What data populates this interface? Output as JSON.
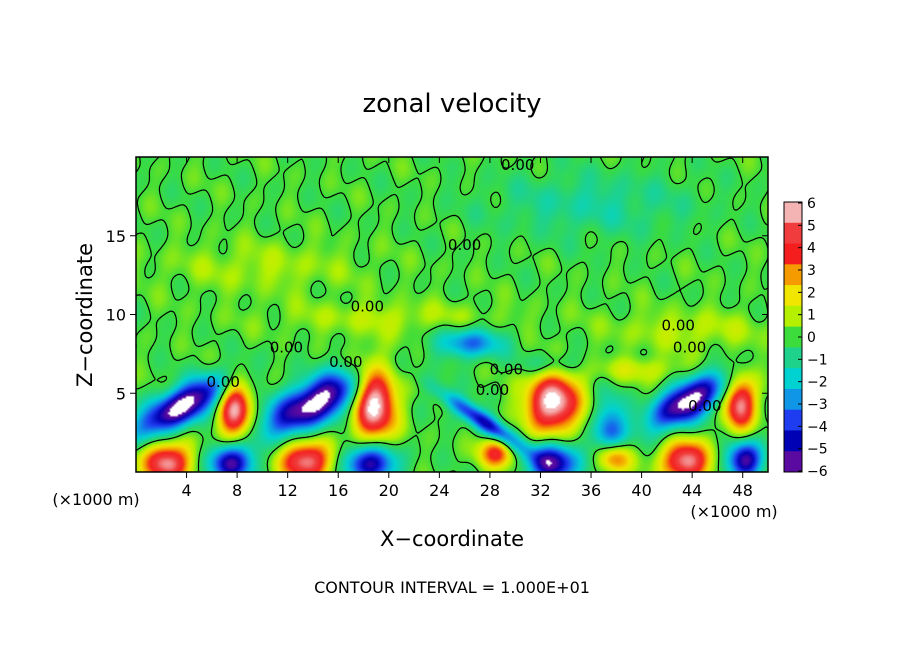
{
  "chart_data": {
    "type": "heatmap",
    "title": "zonal velocity",
    "xlabel": "X−coordinate",
    "ylabel": "Z−coordinate",
    "x_unit_left": "(×1000 m)",
    "x_unit_right": "(×1000 m)",
    "footer": "CONTOUR INTERVAL = 1.000E+01",
    "xlim": [
      0,
      50
    ],
    "ylim": [
      0,
      20
    ],
    "x_ticks": [
      4,
      8,
      12,
      16,
      20,
      24,
      28,
      32,
      36,
      40,
      44,
      48
    ],
    "x_tick_labels": [
      "4",
      "8",
      "12",
      "16",
      "20",
      "24",
      "28",
      "32",
      "36",
      "40",
      "44",
      "48"
    ],
    "y_ticks": [
      5,
      10,
      15
    ],
    "y_tick_labels": [
      "5",
      "10",
      "15"
    ],
    "colorbar": {
      "values": [
        6,
        5,
        4,
        3,
        2,
        1,
        0,
        -1,
        -2,
        -3,
        -4,
        -5,
        -6
      ],
      "labels": [
        "6",
        "5",
        "4",
        "3",
        "2",
        "1",
        "0",
        "−1",
        "−2",
        "−3",
        "−4",
        "−5",
        "−6"
      ],
      "colors": [
        "#f5b4b4",
        "#f03c3c",
        "#f51e1e",
        "#f59b00",
        "#f0e600",
        "#b4f000",
        "#3cdc3c",
        "#1ed28c",
        "#00d2d2",
        "#0f96e6",
        "#1e3cf0",
        "#0000b4",
        "#5a0aa0"
      ]
    },
    "contour_labels": [
      {
        "text": "0.00",
        "x": 30.2,
        "y": 19.5
      },
      {
        "text": "0.00",
        "x": 26.0,
        "y": 14.4
      },
      {
        "text": "0.00",
        "x": 18.3,
        "y": 10.5
      },
      {
        "text": "0.00",
        "x": 11.9,
        "y": 7.9
      },
      {
        "text": "0.00",
        "x": 16.6,
        "y": 7.0
      },
      {
        "text": "0.00",
        "x": 6.9,
        "y": 5.7
      },
      {
        "text": "0.00",
        "x": 42.9,
        "y": 9.3
      },
      {
        "text": "0.00",
        "x": 43.8,
        "y": 7.9
      },
      {
        "text": "0.00",
        "x": 29.3,
        "y": 6.5
      },
      {
        "text": "0.00",
        "x": 28.2,
        "y": 5.2
      },
      {
        "text": "0.00",
        "x": 45.0,
        "y": 4.2
      }
    ],
    "features": [
      {
        "x": 3.7,
        "z": 4.2,
        "rx": 2.6,
        "rz": 2.8,
        "amp": -7,
        "rot": -35
      },
      {
        "x": 7.8,
        "z": 3.9,
        "rx": 1.7,
        "rz": 2.6,
        "amp": 6,
        "rot": 0
      },
      {
        "x": 14.2,
        "z": 4.4,
        "rx": 3.2,
        "rz": 3.0,
        "amp": -7,
        "rot": -35
      },
      {
        "x": 18.8,
        "z": 4.5,
        "rx": 2.2,
        "rz": 3.2,
        "amp": 7,
        "rot": 0
      },
      {
        "x": 27.5,
        "z": 3.2,
        "rx": 1.3,
        "rz": 3.0,
        "amp": -5,
        "rot": 35
      },
      {
        "x": 33.0,
        "z": 4.4,
        "rx": 2.6,
        "rz": 2.4,
        "amp": 7,
        "rot": 0
      },
      {
        "x": 37.5,
        "z": 2.5,
        "rx": 1.6,
        "rz": 2.6,
        "amp": -4,
        "rot": 0
      },
      {
        "x": 43.7,
        "z": 4.5,
        "rx": 2.6,
        "rz": 2.4,
        "amp": -7,
        "rot": -30
      },
      {
        "x": 47.8,
        "z": 4.4,
        "rx": 1.6,
        "rz": 2.2,
        "amp": 6,
        "rot": 0
      },
      {
        "x": 2.5,
        "z": 0.6,
        "rx": 2.4,
        "rz": 1.6,
        "amp": 6,
        "rot": 0
      },
      {
        "x": 7.5,
        "z": 0.6,
        "rx": 2.2,
        "rz": 1.5,
        "amp": -6,
        "rot": 0
      },
      {
        "x": 13.5,
        "z": 0.7,
        "rx": 2.6,
        "rz": 1.6,
        "amp": 6,
        "rot": 0
      },
      {
        "x": 18.5,
        "z": 0.6,
        "rx": 2.6,
        "rz": 1.5,
        "amp": -6,
        "rot": 0
      },
      {
        "x": 28.5,
        "z": 1.2,
        "rx": 1.8,
        "rz": 1.2,
        "amp": 4,
        "rot": 0
      },
      {
        "x": 33.0,
        "z": 0.6,
        "rx": 2.4,
        "rz": 1.6,
        "amp": -6,
        "rot": 0
      },
      {
        "x": 37.8,
        "z": 0.9,
        "rx": 1.6,
        "rz": 1.3,
        "amp": 5,
        "rot": 0
      },
      {
        "x": 43.5,
        "z": 0.7,
        "rx": 2.4,
        "rz": 1.6,
        "amp": 6,
        "rot": 0
      },
      {
        "x": 48.2,
        "z": 0.8,
        "rx": 1.8,
        "rz": 1.5,
        "amp": -6,
        "rot": 0
      },
      {
        "x": 26.5,
        "z": 8.2,
        "rx": 3.2,
        "rz": 1.2,
        "amp": -3.5,
        "rot": 0
      },
      {
        "x": 33.0,
        "z": 6.8,
        "rx": 3.0,
        "rz": 1.0,
        "amp": -1.6,
        "rot": 0
      },
      {
        "x": 36.0,
        "z": 17.0,
        "rx": 10.0,
        "rz": 2.6,
        "amp": -1.2,
        "rot": 0
      },
      {
        "x": 20.0,
        "z": 9.8,
        "rx": 12.0,
        "rz": 1.3,
        "amp": 1.0,
        "rot": 0
      },
      {
        "x": 44.0,
        "z": 9.0,
        "rx": 8.0,
        "rz": 1.6,
        "amp": 1.1,
        "rot": 0
      },
      {
        "x": 10.0,
        "z": 13.0,
        "rx": 10.0,
        "rz": 2.0,
        "amp": 0.9,
        "rot": 0
      },
      {
        "x": 40.0,
        "z": 6.5,
        "rx": 5.0,
        "rz": 1.0,
        "amp": 1.4,
        "rot": 0
      }
    ]
  }
}
